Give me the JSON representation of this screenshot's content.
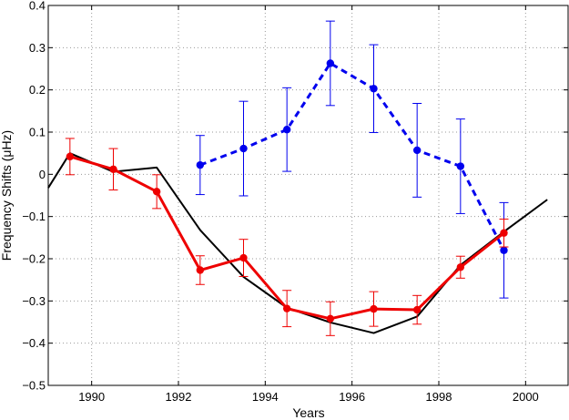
{
  "chart_data": {
    "type": "line",
    "title": "",
    "xlabel": "Years",
    "ylabel": "Frequency Shifts (μHz)",
    "xlim": [
      1989,
      2001
    ],
    "ylim": [
      -0.5,
      0.4
    ],
    "xticks": [
      1990,
      1992,
      1994,
      1996,
      1998,
      2000
    ],
    "yticks": [
      -0.5,
      -0.4,
      -0.3,
      -0.2,
      -0.1,
      0,
      0.1,
      0.2,
      0.3,
      0.4
    ],
    "xtick_labels": [
      "1990",
      "1992",
      "1994",
      "1996",
      "1998",
      "2000"
    ],
    "ytick_labels": [
      "−0.5",
      "−0.4",
      "−0.3",
      "−0.2",
      "−0.1",
      "0",
      "0.1",
      "0.2",
      "0.3",
      "0.4"
    ],
    "grid": true,
    "legend": "none",
    "series": [
      {
        "color": "#0000ee",
        "style": "dashed",
        "markers": true,
        "x": [
          1992.5,
          1993.5,
          1994.5,
          1995.5,
          1996.5,
          1997.5,
          1998.5,
          1999.5
        ],
        "y": [
          0.022,
          0.061,
          0.106,
          0.263,
          0.203,
          0.057,
          0.019,
          -0.18
        ],
        "err": [
          0.07,
          0.112,
          0.099,
          0.1,
          0.104,
          0.111,
          0.112,
          0.113
        ]
      },
      {
        "color": "#ee0000",
        "style": "solid",
        "markers": true,
        "x": [
          1989.5,
          1990.5,
          1991.5,
          1992.5,
          1993.5,
          1994.5,
          1995.5,
          1996.5,
          1997.5,
          1998.5,
          1999.5
        ],
        "y": [
          0.042,
          0.012,
          -0.041,
          -0.227,
          -0.198,
          -0.318,
          -0.342,
          -0.319,
          -0.321,
          -0.22,
          -0.139
        ],
        "err": [
          0.043,
          0.049,
          0.04,
          0.034,
          0.044,
          0.043,
          0.04,
          0.041,
          0.034,
          0.026,
          0.033
        ]
      },
      {
        "color": "#000000",
        "style": "solid",
        "markers": false,
        "x": [
          1989,
          1989.5,
          1990.5,
          1991.5,
          1992.5,
          1993.5,
          1994.5,
          1995.5,
          1996.5,
          1997.5,
          1998.5,
          1999.5,
          2000.5
        ],
        "y": [
          -0.032,
          0.05,
          0.006,
          0.016,
          -0.132,
          -0.243,
          -0.316,
          -0.351,
          -0.376,
          -0.337,
          -0.215,
          -0.136,
          -0.06
        ]
      }
    ]
  }
}
